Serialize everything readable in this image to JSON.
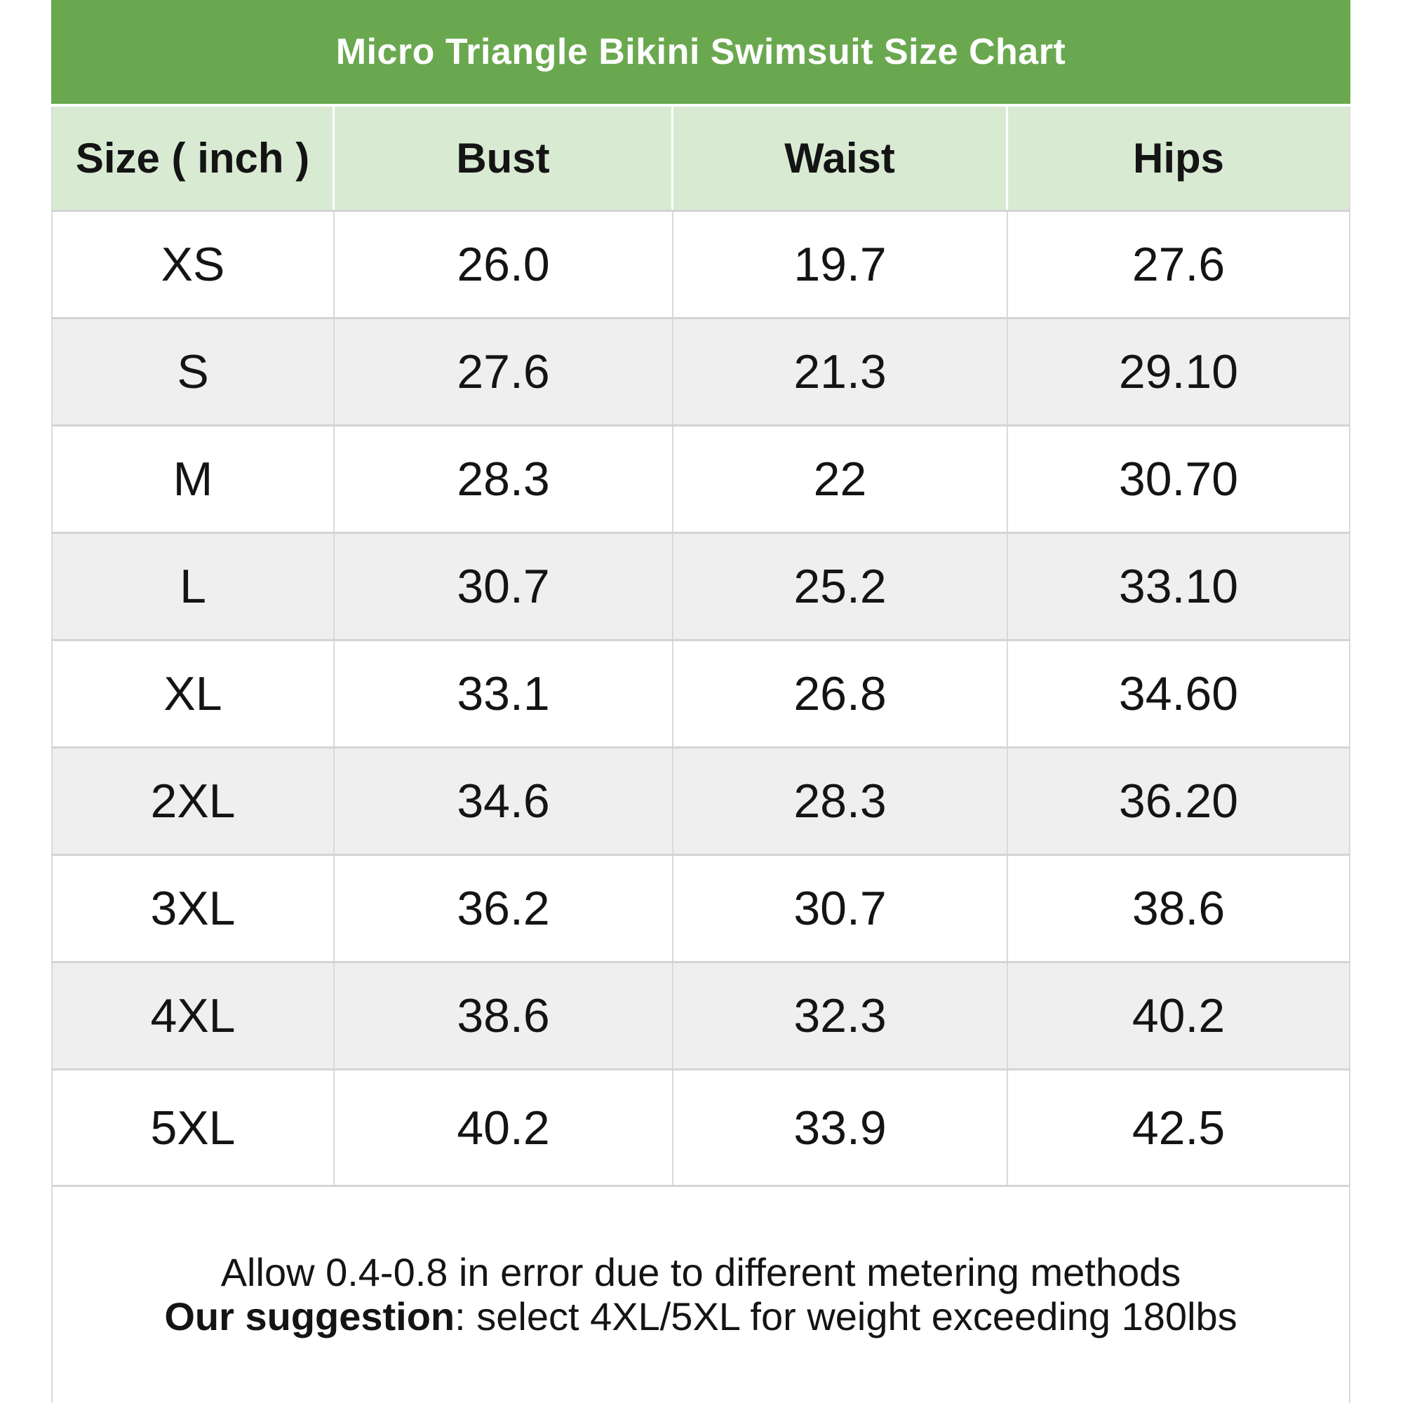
{
  "header": {
    "title": "Micro Triangle Bikini Swimsuit Size Chart"
  },
  "chart_data": {
    "type": "table",
    "title": "Micro Triangle Bikini Swimsuit Size Chart",
    "unit": "inch",
    "columns": [
      "Size ( inch )",
      "Bust",
      "Waist",
      "Hips"
    ],
    "rows": [
      [
        "XS",
        "26.0",
        "19.7",
        "27.6"
      ],
      [
        "S",
        "27.6",
        "21.3",
        "29.10"
      ],
      [
        "M",
        "28.3",
        "22",
        "30.70"
      ],
      [
        "L",
        "30.7",
        "25.2",
        "33.10"
      ],
      [
        "XL",
        "33.1",
        "26.8",
        "34.60"
      ],
      [
        "2XL",
        "34.6",
        "28.3",
        "36.20"
      ],
      [
        "3XL",
        "36.2",
        "30.7",
        "38.6"
      ],
      [
        "4XL",
        "38.6",
        "32.3",
        "40.2"
      ],
      [
        "5XL",
        "40.2",
        "33.9",
        "42.5"
      ]
    ]
  },
  "footer": {
    "line1": "Allow 0.4-0.8 in error due to different metering methods",
    "line2_label": "Our suggestion",
    "line2_rest": ": select 4XL/5XL for weight exceeding 180lbs"
  },
  "colors": {
    "title_bar": "#6aa84f",
    "header_row": "#d9ead3",
    "row_alt": "#efefef",
    "row_bg": "#ffffff",
    "border": "#dadada",
    "title_text": "#ffffff",
    "text": "#141414"
  }
}
